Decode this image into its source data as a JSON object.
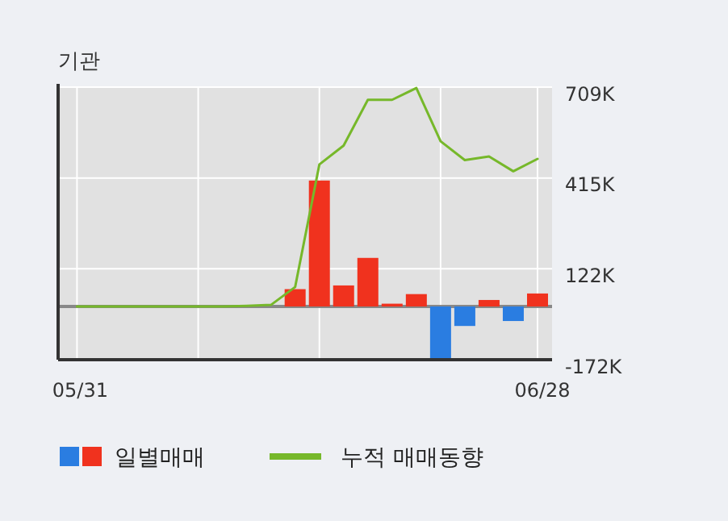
{
  "chart_data": {
    "type": "bar",
    "title": "기관",
    "categories": [
      "05/31",
      null,
      null,
      null,
      null,
      null,
      null,
      null,
      null,
      null,
      null,
      null,
      null,
      null,
      null,
      null,
      null,
      null,
      null,
      "06/28"
    ],
    "series": [
      {
        "name": "일별매매",
        "colors": [
          "#f0321e",
          "#f0321e",
          "#f0321e",
          "#f0321e",
          "#f0321e",
          "#f0321e",
          "#f0321e",
          "#f0321e",
          "#f0321e",
          "#f0321e",
          "#f0321e",
          "#f0321e",
          "#f0321e",
          "#f0321e",
          "#f0321e",
          "#2a7de1",
          "#2a7de1",
          "#f0321e",
          "#2a7de1",
          "#f0321e"
        ],
        "values": [
          0,
          0,
          0,
          0,
          0,
          0,
          0,
          null,
          null,
          56000,
          407000,
          68000,
          157000,
          9000,
          40000,
          -167000,
          -63000,
          21000,
          -47000,
          42000
        ]
      },
      {
        "type": "line",
        "name": "누적 매매동향",
        "color": "#76b82a",
        "values": [
          0,
          0,
          0,
          0,
          0,
          0,
          0,
          2000,
          5000,
          63000,
          459000,
          520000,
          668000,
          668000,
          706000,
          534000,
          473000,
          485000,
          437000,
          477000
        ]
      }
    ],
    "ylim": [
      -172000,
      709000
    ],
    "yticks": [
      {
        "value": 709000,
        "label": "709K"
      },
      {
        "value": 415000,
        "label": "415K"
      },
      {
        "value": 122000,
        "label": "122K"
      },
      {
        "value": -172000,
        "label": "-172K"
      }
    ],
    "grid": true,
    "legend": "bottom"
  }
}
